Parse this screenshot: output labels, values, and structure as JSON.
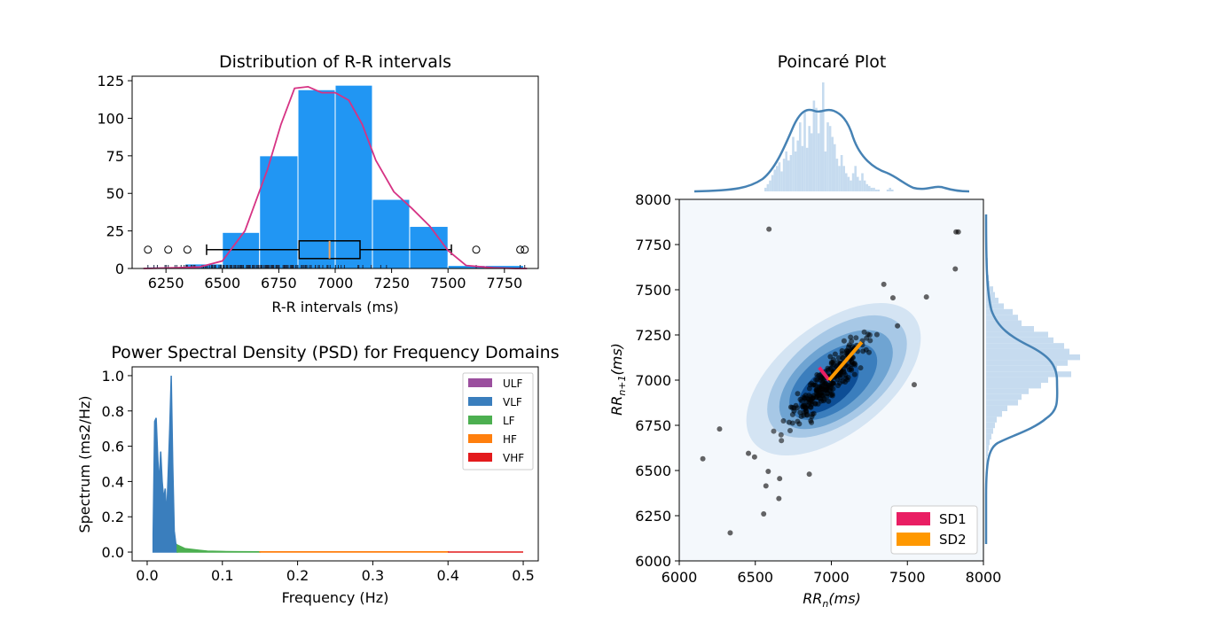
{
  "colors": {
    "hist_bar": "#2196F3",
    "kde_line": "#D63384",
    "boxplot_median": "#F4A460",
    "ulf": "#9B4F9E",
    "vlf": "#3A7EBD",
    "lf": "#4CAF50",
    "hf": "#FF7F0E",
    "vhf": "#E31A1C",
    "sd1": "#E91E63",
    "sd2": "#FF9800",
    "poincare_marginal": "#4682B4",
    "poincare_points": "#000000"
  },
  "chart_data": [
    {
      "type": "bar",
      "title": "Distribution of R-R intervals",
      "xlabel": "R-R intervals (ms)",
      "ylabel": "",
      "xlim": [
        6100,
        7900
      ],
      "ylim": [
        0,
        128
      ],
      "x_ticks": [
        6250,
        6500,
        6750,
        7000,
        7250,
        7500,
        7750
      ],
      "y_ticks": [
        0,
        25,
        50,
        75,
        100,
        125
      ],
      "bins": [
        {
          "x0": 6170,
          "x1": 6335,
          "value": 1
        },
        {
          "x0": 6335,
          "x1": 6500,
          "value": 3
        },
        {
          "x0": 6500,
          "x1": 6665,
          "value": 24
        },
        {
          "x0": 6665,
          "x1": 6835,
          "value": 75
        },
        {
          "x0": 6835,
          "x1": 7000,
          "value": 119
        },
        {
          "x0": 7000,
          "x1": 7165,
          "value": 122
        },
        {
          "x0": 7165,
          "x1": 7330,
          "value": 46
        },
        {
          "x0": 7330,
          "x1": 7500,
          "value": 28
        },
        {
          "x0": 7500,
          "x1": 7665,
          "value": 2
        },
        {
          "x0": 7665,
          "x1": 7835,
          "value": 2
        }
      ],
      "kde": {
        "x": [
          6150,
          6300,
          6400,
          6500,
          6600,
          6700,
          6760,
          6820,
          6880,
          6940,
          7000,
          7060,
          7120,
          7180,
          7260,
          7340,
          7420,
          7500,
          7580,
          7700,
          7800,
          7850
        ],
        "y": [
          0,
          0.5,
          1,
          5,
          25,
          66,
          96,
          120,
          121,
          117,
          117,
          112,
          96,
          72,
          51,
          40,
          28,
          12,
          2,
          0.5,
          0,
          0
        ]
      },
      "boxplot": {
        "whisker_low": 6430,
        "q1": 6840,
        "median": 6975,
        "q3": 7110,
        "whisker_high": 7515,
        "y": 12.5,
        "outliers": [
          6170,
          6260,
          6345,
          7625,
          7820,
          7840
        ]
      }
    },
    {
      "type": "area",
      "title": "Power Spectral Density (PSD) for Frequency Domains",
      "xlabel": "Frequency (Hz)",
      "ylabel": "Spectrum (ms2/Hz)",
      "xlim": [
        -0.02,
        0.52
      ],
      "ylim": [
        -0.05,
        1.05
      ],
      "x_ticks": [
        0.0,
        0.1,
        0.2,
        0.3,
        0.4,
        0.5
      ],
      "y_ticks": [
        0.0,
        0.2,
        0.4,
        0.6,
        0.8,
        1.0
      ],
      "legend": [
        "ULF",
        "VLF",
        "LF",
        "HF",
        "VHF"
      ],
      "legend_position": "upper right",
      "series": [
        {
          "name": "VLF",
          "x": [
            0.008,
            0.01,
            0.012,
            0.014,
            0.016,
            0.018,
            0.02,
            0.022,
            0.024,
            0.026,
            0.028,
            0.03,
            0.032,
            0.034,
            0.036,
            0.038,
            0.04
          ],
          "values": [
            0.1,
            0.74,
            0.76,
            0.55,
            0.38,
            0.57,
            0.4,
            0.3,
            0.36,
            0.2,
            0.45,
            0.7,
            1.0,
            0.5,
            0.12,
            0.05,
            0.03
          ]
        },
        {
          "name": "LF",
          "x": [
            0.04,
            0.05,
            0.06,
            0.07,
            0.08,
            0.1,
            0.12,
            0.15
          ],
          "values": [
            0.04,
            0.02,
            0.015,
            0.01,
            0.005,
            0.003,
            0.002,
            0.001
          ]
        },
        {
          "name": "HF",
          "x": [
            0.15,
            0.4
          ],
          "values": [
            0.001,
            0.001
          ]
        },
        {
          "name": "VHF",
          "x": [
            0.4,
            0.5
          ],
          "values": [
            0.0,
            0.0
          ]
        }
      ]
    },
    {
      "type": "scatter",
      "title": "Poincaré Plot",
      "xlabel": "RR_n(ms)",
      "ylabel": "RR_{n+1}(ms)",
      "xlim": [
        6000,
        8000
      ],
      "ylim": [
        6000,
        8000
      ],
      "x_ticks": [
        6000,
        6500,
        7000,
        7500,
        8000
      ],
      "y_ticks": [
        6000,
        6250,
        6500,
        6750,
        7000,
        7250,
        7500,
        7750,
        8000
      ],
      "legend": [
        "SD1",
        "SD2"
      ],
      "legend_position": "lower right",
      "center": [
        6985,
        7000
      ],
      "sd1_end": [
        6920,
        7070
      ],
      "sd2_end": [
        7200,
        7210
      ],
      "outlier_points": [
        [
          6155,
          6565
        ],
        [
          6265,
          6730
        ],
        [
          6335,
          6155
        ],
        [
          6455,
          6595
        ],
        [
          6495,
          6575
        ],
        [
          6555,
          6260
        ],
        [
          6570,
          6415
        ],
        [
          6585,
          6495
        ],
        [
          6590,
          7835
        ],
        [
          6655,
          6345
        ],
        [
          6660,
          6455
        ],
        [
          6855,
          6480
        ],
        [
          7345,
          7530
        ],
        [
          7405,
          7455
        ],
        [
          7435,
          7300
        ],
        [
          7545,
          6975
        ],
        [
          7625,
          7460
        ],
        [
          7815,
          7615
        ],
        [
          7820,
          7820
        ],
        [
          7835,
          7820
        ]
      ]
    }
  ]
}
